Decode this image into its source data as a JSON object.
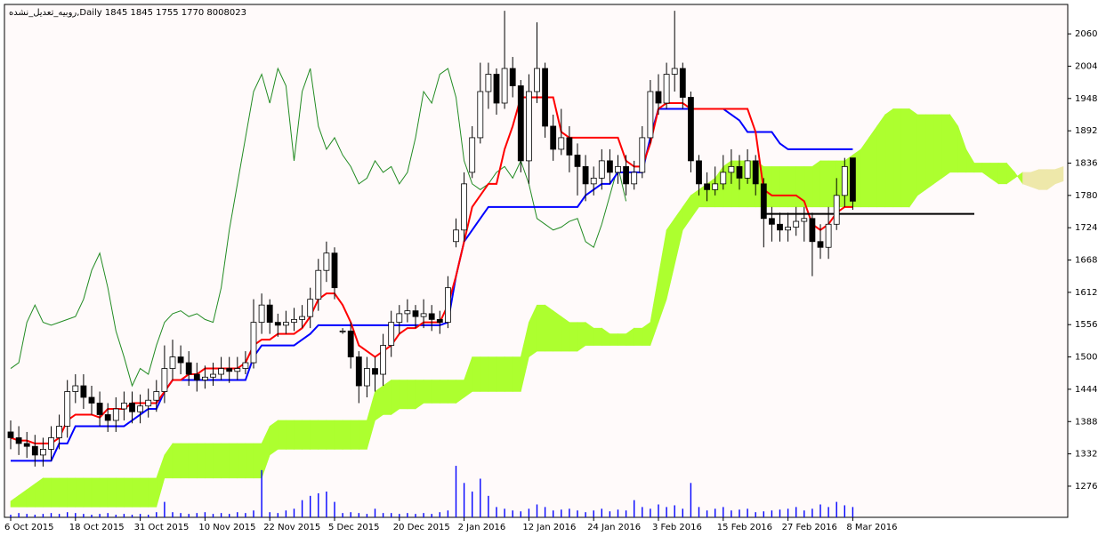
{
  "chart_data": {
    "type": "candlestick",
    "title": "روبیه_تعدیل_نشده,Daily  1845 1845 1755 1770  8008023",
    "categories": [
      "6 Oct 2015",
      null,
      null,
      null,
      null,
      null,
      null,
      null,
      "18 Oct 2015",
      null,
      null,
      null,
      null,
      null,
      null,
      null,
      "31 Oct 2015",
      null,
      null,
      null,
      null,
      null,
      null,
      null,
      "10 Nov 2015",
      null,
      null,
      null,
      null,
      null,
      null,
      null,
      "22 Nov 2015",
      null,
      null,
      null,
      null,
      null,
      null,
      null,
      "5 Dec 2015",
      null,
      null,
      null,
      null,
      null,
      null,
      null,
      "20 Dec 2015",
      null,
      null,
      null,
      null,
      null,
      null,
      null,
      "2 Jan 2016",
      null,
      null,
      null,
      null,
      null,
      null,
      null,
      "12 Jan 2016",
      null,
      null,
      null,
      null,
      null,
      null,
      null,
      "24 Jan 2016",
      null,
      null,
      null,
      null,
      null,
      null,
      null,
      "3 Feb 2016",
      null,
      null,
      null,
      null,
      null,
      null,
      null,
      "15 Feb 2016",
      null,
      null,
      null,
      null,
      null,
      null,
      null,
      "27 Feb 2016",
      null,
      null,
      null,
      null,
      null,
      null,
      null,
      "8 Mar 2016"
    ],
    "ohlc": [
      [
        1370,
        1390,
        1340,
        1360
      ],
      [
        1360,
        1380,
        1330,
        1350
      ],
      [
        1350,
        1370,
        1325,
        1345
      ],
      [
        1345,
        1365,
        1310,
        1330
      ],
      [
        1330,
        1360,
        1310,
        1340
      ],
      [
        1340,
        1380,
        1320,
        1360
      ],
      [
        1360,
        1400,
        1340,
        1380
      ],
      [
        1380,
        1460,
        1360,
        1440
      ],
      [
        1440,
        1470,
        1420,
        1450
      ],
      [
        1450,
        1470,
        1410,
        1430
      ],
      [
        1430,
        1450,
        1400,
        1420
      ],
      [
        1420,
        1440,
        1380,
        1400
      ],
      [
        1400,
        1420,
        1370,
        1390
      ],
      [
        1390,
        1430,
        1370,
        1410
      ],
      [
        1410,
        1440,
        1390,
        1420
      ],
      [
        1420,
        1440,
        1385,
        1405
      ],
      [
        1405,
        1435,
        1385,
        1415
      ],
      [
        1415,
        1445,
        1395,
        1425
      ],
      [
        1425,
        1460,
        1405,
        1440
      ],
      [
        1440,
        1520,
        1420,
        1480
      ],
      [
        1480,
        1530,
        1460,
        1500
      ],
      [
        1500,
        1520,
        1470,
        1490
      ],
      [
        1490,
        1510,
        1450,
        1470
      ],
      [
        1470,
        1490,
        1440,
        1460
      ],
      [
        1460,
        1485,
        1445,
        1465
      ],
      [
        1465,
        1490,
        1450,
        1470
      ],
      [
        1470,
        1500,
        1460,
        1480
      ],
      [
        1480,
        1500,
        1455,
        1475
      ],
      [
        1475,
        1500,
        1460,
        1480
      ],
      [
        1480,
        1510,
        1470,
        1490
      ],
      [
        1490,
        1600,
        1480,
        1560
      ],
      [
        1560,
        1610,
        1540,
        1590
      ],
      [
        1590,
        1600,
        1540,
        1560
      ],
      [
        1560,
        1575,
        1535,
        1555
      ],
      [
        1555,
        1580,
        1540,
        1560
      ],
      [
        1560,
        1585,
        1545,
        1565
      ],
      [
        1565,
        1590,
        1550,
        1570
      ],
      [
        1570,
        1620,
        1550,
        1600
      ],
      [
        1600,
        1670,
        1580,
        1650
      ],
      [
        1650,
        1700,
        1630,
        1680
      ],
      [
        1680,
        1690,
        1600,
        1620
      ],
      [
        1545,
        1550,
        1540,
        1545
      ],
      [
        1545,
        1560,
        1480,
        1500
      ],
      [
        1500,
        1510,
        1420,
        1450
      ],
      [
        1450,
        1500,
        1430,
        1480
      ],
      [
        1480,
        1500,
        1440,
        1470
      ],
      [
        1470,
        1540,
        1450,
        1520
      ],
      [
        1520,
        1580,
        1500,
        1560
      ],
      [
        1560,
        1590,
        1540,
        1575
      ],
      [
        1575,
        1600,
        1560,
        1580
      ],
      [
        1580,
        1590,
        1550,
        1570
      ],
      [
        1570,
        1600,
        1550,
        1575
      ],
      [
        1575,
        1590,
        1545,
        1565
      ],
      [
        1565,
        1580,
        1540,
        1560
      ],
      [
        1560,
        1640,
        1550,
        1620
      ],
      [
        1700,
        1740,
        1690,
        1720
      ],
      [
        1720,
        1820,
        1700,
        1800
      ],
      [
        1820,
        1900,
        1810,
        1880
      ],
      [
        1880,
        2010,
        1870,
        1960
      ],
      [
        1960,
        2010,
        1930,
        1990
      ],
      [
        1990,
        2000,
        1920,
        1940
      ],
      [
        1940,
        2100,
        1930,
        2000
      ],
      [
        2000,
        2020,
        1950,
        1970
      ],
      [
        1970,
        1980,
        1820,
        1840
      ],
      [
        1840,
        1990,
        1800,
        1960
      ],
      [
        1960,
        2080,
        1940,
        2000
      ],
      [
        2000,
        2010,
        1880,
        1900
      ],
      [
        1900,
        1920,
        1840,
        1860
      ],
      [
        1860,
        1930,
        1850,
        1880
      ],
      [
        1880,
        1900,
        1820,
        1850
      ],
      [
        1850,
        1870,
        1780,
        1830
      ],
      [
        1830,
        1850,
        1770,
        1800
      ],
      [
        1800,
        1830,
        1780,
        1810
      ],
      [
        1810,
        1860,
        1790,
        1840
      ],
      [
        1840,
        1860,
        1800,
        1820
      ],
      [
        1820,
        1850,
        1800,
        1830
      ],
      [
        1830,
        1850,
        1780,
        1800
      ],
      [
        1800,
        1840,
        1790,
        1820
      ],
      [
        1820,
        1900,
        1810,
        1880
      ],
      [
        1880,
        1980,
        1870,
        1960
      ],
      [
        1960,
        1990,
        1920,
        1940
      ],
      [
        1940,
        2010,
        1930,
        1990
      ],
      [
        1990,
        2100,
        1960,
        2000
      ],
      [
        2000,
        2010,
        1930,
        1950
      ],
      [
        1950,
        1960,
        1820,
        1840
      ],
      [
        1840,
        1850,
        1780,
        1800
      ],
      [
        1800,
        1820,
        1770,
        1790
      ],
      [
        1790,
        1830,
        1780,
        1800
      ],
      [
        1800,
        1850,
        1790,
        1820
      ],
      [
        1820,
        1860,
        1800,
        1830
      ],
      [
        1830,
        1850,
        1790,
        1810
      ],
      [
        1810,
        1860,
        1800,
        1840
      ],
      [
        1840,
        1850,
        1780,
        1800
      ],
      [
        1800,
        1810,
        1690,
        1740
      ],
      [
        1740,
        1760,
        1700,
        1730
      ],
      [
        1730,
        1750,
        1700,
        1720
      ],
      [
        1720,
        1750,
        1700,
        1725
      ],
      [
        1725,
        1760,
        1710,
        1735
      ],
      [
        1735,
        1760,
        1700,
        1740
      ],
      [
        1740,
        1750,
        1640,
        1700
      ],
      [
        1700,
        1730,
        1670,
        1690
      ],
      [
        1690,
        1760,
        1670,
        1730
      ],
      [
        1730,
        1810,
        1720,
        1780
      ],
      [
        1780,
        1845,
        1760,
        1830
      ],
      [
        1845,
        1845,
        1755,
        1770
      ]
    ],
    "up_color": "#ffffff",
    "down_color": "#000000",
    "outline_color": "#000000",
    "tenkan": {
      "color": "#ff0000",
      "values": [
        1360,
        1355,
        1355,
        1350,
        1350,
        1350,
        1360,
        1390,
        1400,
        1400,
        1400,
        1395,
        1410,
        1410,
        1410,
        1420,
        1420,
        1420,
        1420,
        1440,
        1460,
        1460,
        1470,
        1470,
        1480,
        1480,
        1480,
        1480,
        1480,
        1490,
        1520,
        1530,
        1530,
        1540,
        1540,
        1540,
        1550,
        1570,
        1600,
        1610,
        1610,
        1590,
        1560,
        1520,
        1510,
        1500,
        1510,
        1520,
        1540,
        1550,
        1550,
        1560,
        1560,
        1560,
        1590,
        1640,
        1700,
        1760,
        1780,
        1800,
        1800,
        1860,
        1900,
        1950,
        1950,
        1950,
        1950,
        1950,
        1890,
        1880,
        1880,
        1880,
        1880,
        1880,
        1880,
        1880,
        1840,
        1830,
        1830,
        1870,
        1930,
        1940,
        1940,
        1940,
        1930,
        1930,
        1930,
        1930,
        1930,
        1930,
        1930,
        1930,
        1890,
        1790,
        1780,
        1780,
        1780,
        1780,
        1770,
        1730,
        1720,
        1730,
        1750,
        1760,
        1760
      ]
    },
    "kijun": {
      "color": "#0000ff",
      "values": [
        1320,
        1320,
        1320,
        1320,
        1320,
        1320,
        1350,
        1350,
        1380,
        1380,
        1380,
        1380,
        1380,
        1380,
        1380,
        1390,
        1400,
        1410,
        1410,
        1440,
        1460,
        1460,
        1460,
        1460,
        1460,
        1460,
        1460,
        1460,
        1460,
        1460,
        1500,
        1520,
        1520,
        1520,
        1520,
        1520,
        1530,
        1540,
        1555,
        1555,
        1555,
        1555,
        1555,
        1555,
        1555,
        1555,
        1555,
        1555,
        1555,
        1555,
        1555,
        1555,
        1555,
        1555,
        1560,
        1640,
        1700,
        1720,
        1740,
        1760,
        1760,
        1760,
        1760,
        1760,
        1760,
        1760,
        1760,
        1760,
        1760,
        1760,
        1760,
        1780,
        1790,
        1800,
        1800,
        1820,
        1820,
        1820,
        1820,
        1880,
        1930,
        1930,
        1930,
        1930,
        1930,
        1930,
        1930,
        1930,
        1930,
        1920,
        1910,
        1890,
        1890,
        1890,
        1890,
        1870,
        1860,
        1860,
        1860,
        1860,
        1860,
        1860,
        1860,
        1860,
        1860
      ]
    },
    "chikou": {
      "color": "#228b22",
      "values": [
        1480,
        1490,
        1560,
        1590,
        1560,
        1555,
        1560,
        1565,
        1570,
        1600,
        1650,
        1680,
        1620,
        1545,
        1500,
        1450,
        1480,
        1470,
        1520,
        1560,
        1575,
        1580,
        1570,
        1575,
        1565,
        1560,
        1620,
        1720,
        1800,
        1880,
        1960,
        1990,
        1940,
        2000,
        1970,
        1840,
        1960,
        2000,
        1900,
        1860,
        1880,
        1850,
        1830,
        1800,
        1810,
        1840,
        1820,
        1830,
        1800,
        1820,
        1880,
        1960,
        1940,
        1990,
        2000,
        1950,
        1840,
        1800,
        1790,
        1800,
        1820,
        1830,
        1810,
        1840,
        1800,
        1740,
        1730,
        1720,
        1725,
        1735,
        1740,
        1700,
        1690,
        1730,
        1780,
        1830,
        1770
      ]
    },
    "senkou_a": [
      1250,
      1260,
      1270,
      1280,
      1290,
      1290,
      1290,
      1290,
      1290,
      1290,
      1290,
      1290,
      1290,
      1290,
      1290,
      1290,
      1290,
      1290,
      1290,
      1330,
      1350,
      1350,
      1350,
      1350,
      1350,
      1350,
      1350,
      1350,
      1350,
      1350,
      1350,
      1350,
      1380,
      1390,
      1390,
      1390,
      1390,
      1390,
      1390,
      1390,
      1390,
      1390,
      1390,
      1390,
      1390,
      1440,
      1450,
      1460,
      1460,
      1460,
      1460,
      1460,
      1460,
      1460,
      1460,
      1460,
      1460,
      1500,
      1500,
      1500,
      1500,
      1500,
      1500,
      1500,
      1560,
      1590,
      1590,
      1580,
      1570,
      1560,
      1560,
      1560,
      1550,
      1550,
      1540,
      1540,
      1540,
      1550,
      1550,
      1560,
      1640,
      1720,
      1740,
      1760,
      1780,
      1790,
      1800,
      1810,
      1830,
      1840,
      1840,
      1840,
      1840,
      1830,
      1830,
      1830,
      1830,
      1830,
      1830,
      1830,
      1840,
      1840,
      1840,
      1840,
      1850,
      1860,
      1880,
      1900,
      1920,
      1930,
      1930,
      1930,
      1920,
      1920,
      1920,
      1920,
      1920,
      1900,
      1860,
      1836,
      1836,
      1836,
      1836,
      1836,
      1820,
      1800,
      1795,
      1790,
      1790,
      1800,
      1805
    ],
    "senkou_b": [
      1240,
      1240,
      1240,
      1240,
      1240,
      1240,
      1240,
      1240,
      1240,
      1240,
      1240,
      1240,
      1240,
      1240,
      1240,
      1240,
      1240,
      1240,
      1240,
      1290,
      1290,
      1290,
      1290,
      1290,
      1290,
      1290,
      1290,
      1290,
      1290,
      1290,
      1290,
      1290,
      1330,
      1340,
      1340,
      1340,
      1340,
      1340,
      1340,
      1340,
      1340,
      1340,
      1340,
      1340,
      1340,
      1390,
      1400,
      1400,
      1410,
      1410,
      1410,
      1420,
      1420,
      1420,
      1420,
      1420,
      1430,
      1440,
      1440,
      1440,
      1440,
      1440,
      1440,
      1440,
      1500,
      1510,
      1510,
      1510,
      1510,
      1510,
      1510,
      1520,
      1520,
      1520,
      1520,
      1520,
      1520,
      1520,
      1520,
      1520,
      1560,
      1600,
      1660,
      1720,
      1740,
      1760,
      1760,
      1760,
      1760,
      1760,
      1760,
      1760,
      1760,
      1760,
      1760,
      1760,
      1760,
      1760,
      1760,
      1760,
      1760,
      1760,
      1760,
      1760,
      1760,
      1760,
      1760,
      1760,
      1760,
      1760,
      1760,
      1760,
      1780,
      1790,
      1800,
      1810,
      1820,
      1820,
      1820,
      1820,
      1820,
      1810,
      1800,
      1800,
      1810,
      1820,
      1820,
      1825,
      1825,
      1825,
      1830
    ],
    "cloud_up_color": "#adff2f",
    "cloud_down_color": "#eee8aa",
    "hline": {
      "value": 1748,
      "color": "#000000"
    },
    "volume": {
      "color": "#0000ff",
      "values": [
        3,
        5,
        4,
        3,
        4,
        5,
        4,
        6,
        5,
        4,
        3,
        4,
        5,
        3,
        4,
        3,
        4,
        3,
        6,
        18,
        6,
        5,
        4,
        5,
        6,
        4,
        5,
        4,
        6,
        5,
        8,
        55,
        6,
        5,
        8,
        10,
        20,
        25,
        28,
        30,
        18,
        5,
        6,
        5,
        4,
        10,
        5,
        5,
        4,
        5,
        4,
        5,
        4,
        6,
        8,
        60,
        40,
        30,
        45,
        25,
        12,
        10,
        8,
        7,
        10,
        15,
        12,
        8,
        9,
        10,
        8,
        6,
        8,
        10,
        7,
        9,
        8,
        20,
        12,
        10,
        15,
        12,
        14,
        10,
        40,
        12,
        8,
        10,
        12,
        8,
        9,
        10,
        6,
        7,
        8,
        9,
        10,
        12,
        8,
        10,
        15,
        12,
        18,
        14,
        12
      ]
    },
    "ylim": [
      1222,
      2111
    ],
    "yticks": [
      1276,
      1332,
      1388,
      1444,
      1500,
      1556,
      1612,
      1668,
      1724,
      1780,
      1836,
      1892,
      1948,
      2004,
      2060
    ]
  }
}
